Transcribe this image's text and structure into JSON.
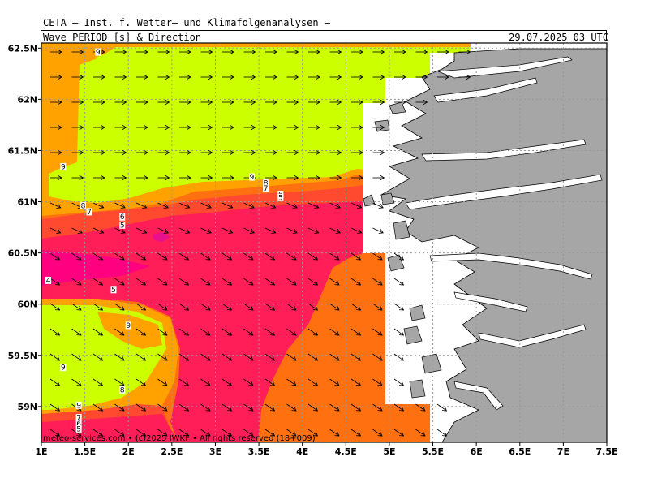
{
  "header": {
    "title": "CETA — Inst. f. Wetter— und Klimafolgenanalysen —",
    "parameter": "Wave_PERIOD_[s]_&_Direction",
    "valid_time": "29.07.2025 03 UTC"
  },
  "footer": {
    "credit": "meteo-services.com • (c)2025 IWKF • All rights reserved (18+009)"
  },
  "axes": {
    "x_ticks": [
      "1E",
      "1.5E",
      "2E",
      "2.5E",
      "3E",
      "3.5E",
      "4E",
      "4.5E",
      "5E",
      "5.5E",
      "6E",
      "6.5E",
      "7E",
      "7.5E"
    ],
    "y_ticks": [
      "62.5N",
      "62N",
      "61.5N",
      "61N",
      "60.5N",
      "60N",
      "59.5N",
      "59N"
    ],
    "lon_range": [
      1,
      7.5
    ],
    "lat_range": [
      58.65,
      62.55
    ],
    "grid": true,
    "grid_style": "dotted"
  },
  "colors": {
    "period_9_plus": "#ccff00",
    "period_8": "#ffa200",
    "period_7": "#ff7010",
    "period_6": "#ff4a30",
    "period_5": "#ff1e58",
    "period_4": "#ff0080",
    "land": "#a6a6a6",
    "coast": "#000000",
    "no_data": "#ffffff"
  },
  "contour_labels": [
    {
      "text": "9",
      "lon": 1.65,
      "lat": 62.45
    },
    {
      "text": "9",
      "lon": 1.25,
      "lat": 61.33
    },
    {
      "text": "9",
      "lon": 3.42,
      "lat": 61.23
    },
    {
      "text": "8",
      "lon": 3.58,
      "lat": 61.17
    },
    {
      "text": "7",
      "lon": 3.58,
      "lat": 61.12
    },
    {
      "text": "6",
      "lon": 3.75,
      "lat": 61.06
    },
    {
      "text": "5",
      "lon": 3.75,
      "lat": 61.03
    },
    {
      "text": "8",
      "lon": 1.48,
      "lat": 60.95
    },
    {
      "text": "7",
      "lon": 1.55,
      "lat": 60.89
    },
    {
      "text": "6",
      "lon": 1.93,
      "lat": 60.84
    },
    {
      "text": "5",
      "lon": 1.93,
      "lat": 60.76
    },
    {
      "text": "4",
      "lon": 1.08,
      "lat": 60.22
    },
    {
      "text": "5",
      "lon": 1.83,
      "lat": 60.13
    },
    {
      "text": "9",
      "lon": 2.0,
      "lat": 59.78
    },
    {
      "text": "9",
      "lon": 1.25,
      "lat": 59.37
    },
    {
      "text": "8",
      "lon": 1.93,
      "lat": 59.15
    },
    {
      "text": "9",
      "lon": 1.43,
      "lat": 59.0
    },
    {
      "text": "7",
      "lon": 1.43,
      "lat": 58.88
    },
    {
      "text": "6",
      "lon": 1.43,
      "lat": 58.82
    },
    {
      "text": "5",
      "lon": 1.43,
      "lat": 58.77
    }
  ]
}
